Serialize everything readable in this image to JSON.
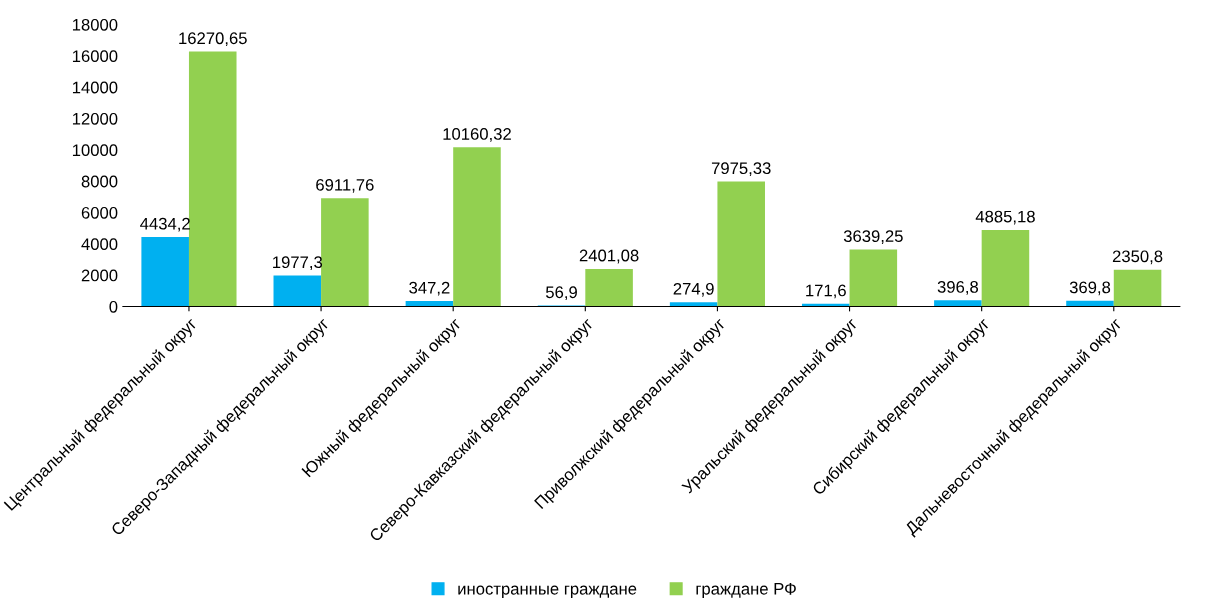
{
  "chart_data": {
    "type": "bar",
    "categories": [
      "Центральный федеральный округ",
      "Северо-Западный федеральный округ",
      "Южный федеральный округ",
      "Северо-Кавказский федеральный округ",
      "Приволжский федеральный округ",
      "Уральский федеральный округ",
      "Сибирский федеральный округ",
      "Дальневосточный федеральный округ"
    ],
    "series": [
      {
        "name": "иностранные граждане",
        "color": "#00b0f0",
        "values": [
          4434.2,
          1977.3,
          347.2,
          56.9,
          274.9,
          171.6,
          396.8,
          369.8
        ],
        "value_labels": [
          "4434,2",
          "1977,3",
          "347,2",
          "56,9",
          "274,9",
          "171,6",
          "396,8",
          "369,8"
        ]
      },
      {
        "name": "граждане РФ",
        "color": "#92d050",
        "values": [
          16270.65,
          6911.76,
          10160.32,
          2401.08,
          7975.33,
          3639.25,
          4885.18,
          2350.8
        ],
        "value_labels": [
          "16270,65",
          "6911,76",
          "10160,32",
          "2401,08",
          "7975,33",
          "3639,25",
          "4885,18",
          "2350,8"
        ]
      }
    ],
    "ylim": [
      0,
      18000
    ],
    "yticks": [
      0,
      2000,
      4000,
      6000,
      8000,
      10000,
      12000,
      14000,
      16000,
      18000
    ],
    "grid": false,
    "legend": "bottom"
  }
}
